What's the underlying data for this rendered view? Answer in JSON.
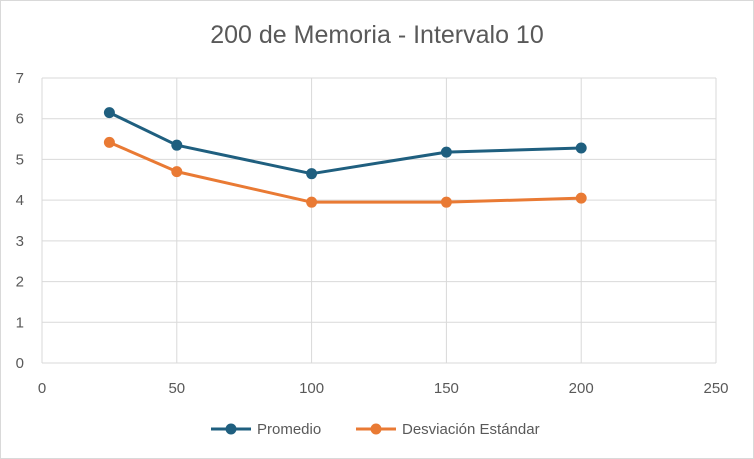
{
  "chart_data": {
    "type": "line",
    "title": "200 de Memoria - Intervalo 10",
    "xlabel": "",
    "ylabel": "",
    "xlim": [
      0,
      250
    ],
    "ylim": [
      0,
      7
    ],
    "x_ticks": [
      0,
      50,
      100,
      150,
      200,
      250
    ],
    "y_ticks": [
      0,
      1,
      2,
      3,
      4,
      5,
      6,
      7
    ],
    "grid": true,
    "legend_position": "bottom",
    "x": [
      25,
      50,
      100,
      150,
      200
    ],
    "series": [
      {
        "name": "Promedio",
        "color": "#1f5f7f",
        "values": [
          6.15,
          5.35,
          4.65,
          5.18,
          5.28
        ]
      },
      {
        "name": "Desviación Estándar",
        "color": "#e97a34",
        "values": [
          5.42,
          4.7,
          3.95,
          3.95,
          4.05
        ]
      }
    ]
  }
}
